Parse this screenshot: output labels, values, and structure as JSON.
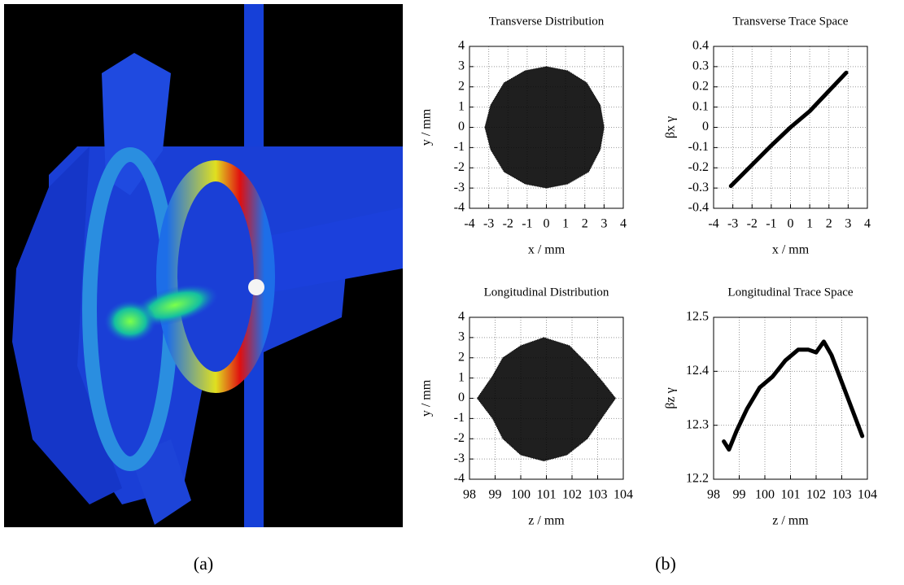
{
  "chart_data": [
    {
      "type": "area",
      "title": "Transverse Distribution",
      "xlabel": "x / mm",
      "ylabel": "y / mm",
      "x": [
        0,
        1.1,
        2.1,
        2.8,
        3,
        2.8,
        2.2,
        1.1,
        0,
        -1.1,
        -2.2,
        -2.9,
        -3.2,
        -2.9,
        -2.2,
        -1.1
      ],
      "y": [
        3,
        2.8,
        2.2,
        1.1,
        0,
        -1.1,
        -2.2,
        -2.8,
        -3,
        -2.8,
        -2.2,
        -1.1,
        0,
        1.1,
        2.2,
        2.8
      ],
      "xlim": [
        -4,
        4
      ],
      "ylim": [
        -4,
        4
      ],
      "xticks": [
        -4,
        -3,
        -2,
        -1,
        0,
        1,
        2,
        3,
        4
      ],
      "yticks": [
        -4,
        -3,
        -2,
        -1,
        0,
        1,
        2,
        3,
        4
      ],
      "grid": true,
      "color": "#000000"
    },
    {
      "type": "line",
      "title": "Transverse Trace Space",
      "xlabel": "x / mm",
      "ylabel": "βx γ",
      "x": [
        -3.1,
        -1,
        0,
        1,
        2.9
      ],
      "y": [
        -0.29,
        -0.09,
        0,
        0.08,
        0.27
      ],
      "xlim": [
        -4,
        4
      ],
      "ylim": [
        -0.4,
        0.4
      ],
      "xticks": [
        -4,
        -3,
        -2,
        -1,
        0,
        1,
        2,
        3,
        4
      ],
      "yticks": [
        -0.4,
        -0.3,
        -0.2,
        -0.1,
        0,
        0.1,
        0.2,
        0.3,
        0.4
      ],
      "grid": true,
      "color": "#000000"
    },
    {
      "type": "area",
      "title": "Longitudinal Distribution",
      "xlabel": "z / mm",
      "ylabel": "y / mm",
      "x": [
        100.9,
        101.9,
        102.6,
        103.2,
        103.7,
        103.2,
        102.6,
        101.8,
        100.9,
        100,
        99.3,
        98.9,
        98.3,
        98.9,
        99.3,
        100
      ],
      "y": [
        3,
        2.6,
        1.7,
        0.8,
        0,
        -0.9,
        -2,
        -2.8,
        -3.1,
        -2.8,
        -2,
        -1,
        0,
        1.1,
        2,
        2.6
      ],
      "xlim": [
        98,
        104
      ],
      "ylim": [
        -4,
        4
      ],
      "xticks": [
        98,
        99,
        100,
        101,
        102,
        103,
        104
      ],
      "yticks": [
        -4,
        -3,
        -2,
        -1,
        0,
        1,
        2,
        3,
        4
      ],
      "grid": true,
      "color": "#000000"
    },
    {
      "type": "line",
      "title": "Longitudinal Trace Space",
      "xlabel": "z / mm",
      "ylabel": "βz γ",
      "x": [
        98.4,
        98.6,
        98.9,
        99.3,
        99.8,
        100.3,
        100.8,
        101.3,
        101.7,
        102.0,
        102.3,
        102.6,
        103.0,
        103.4,
        103.8
      ],
      "y": [
        12.27,
        12.255,
        12.29,
        12.33,
        12.37,
        12.39,
        12.42,
        12.44,
        12.44,
        12.435,
        12.455,
        12.43,
        12.38,
        12.33,
        12.28
      ],
      "xlim": [
        98,
        104
      ],
      "ylim": [
        12.2,
        12.5
      ],
      "xticks": [
        98,
        99,
        100,
        101,
        102,
        103,
        104
      ],
      "yticks": [
        12.2,
        12.3,
        12.4,
        12.5
      ],
      "grid": true,
      "color": "#000000"
    }
  ],
  "panel_labels": [
    "(a)",
    "(b)"
  ]
}
